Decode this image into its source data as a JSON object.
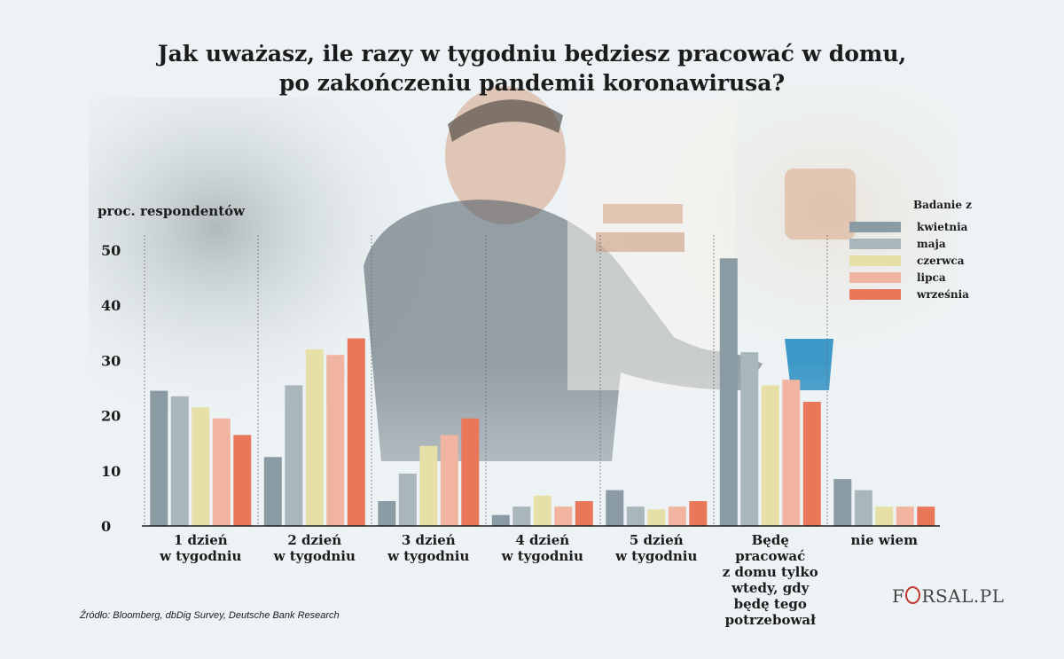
{
  "chart_data": {
    "type": "bar",
    "title": "Jak uważasz, ile razy w tygodniu będziesz pracować w domu, po zakończeniu pandemii koronawirusa?",
    "title_lines": [
      "Jak uważasz, ile razy w tygodniu będziesz pracować w domu,",
      "po zakończeniu pandemii koronawirusa?"
    ],
    "ylabel": "proc. respondentów",
    "ylim": [
      0,
      52
    ],
    "yticks": [
      "0",
      "10",
      "20",
      "30",
      "40",
      "50"
    ],
    "ytick_values": [
      0,
      10,
      20,
      30,
      40,
      50
    ],
    "legend_title": "Badanie z",
    "legend_position": "top-right",
    "categories": [
      [
        "1 dzień",
        "w tygodniu"
      ],
      [
        "2 dzień",
        "w tygodniu"
      ],
      [
        "3 dzień",
        "w tygodniu"
      ],
      [
        "4 dzień",
        "w tygodniu"
      ],
      [
        "5 dzień",
        "w tygodniu"
      ],
      [
        "Będę pracować",
        "z domu tylko",
        "wtedy, gdy",
        "będę tego",
        "potrzebował"
      ],
      [
        "nie wiem"
      ]
    ],
    "series": [
      {
        "name": "kwietnia",
        "color": "#8a9ba3",
        "values": [
          24.5,
          12.5,
          4.5,
          2,
          6.5,
          48.5,
          8.5
        ]
      },
      {
        "name": "maja",
        "color": "#a9b6bc",
        "values": [
          23.5,
          25.5,
          9.5,
          3.5,
          3.5,
          31.5,
          6.5
        ]
      },
      {
        "name": "czerwca",
        "color": "#e6e0a8",
        "values": [
          21.5,
          32,
          14.5,
          5.5,
          3,
          25.5,
          3.5
        ]
      },
      {
        "name": "lipca",
        "color": "#f1b4a0",
        "values": [
          19.5,
          31,
          16.5,
          3.5,
          3.5,
          26.5,
          3.5
        ]
      },
      {
        "name": "września",
        "color": "#e9775a",
        "values": [
          16.5,
          34,
          19.5,
          4.5,
          4.5,
          22.5,
          3.5
        ]
      }
    ]
  },
  "source": "Źródło:  Bloomberg, dbDig Survey, Deutsche Bank Research",
  "logo": {
    "text_left": "F",
    "text_right": "RSAL.PL"
  }
}
